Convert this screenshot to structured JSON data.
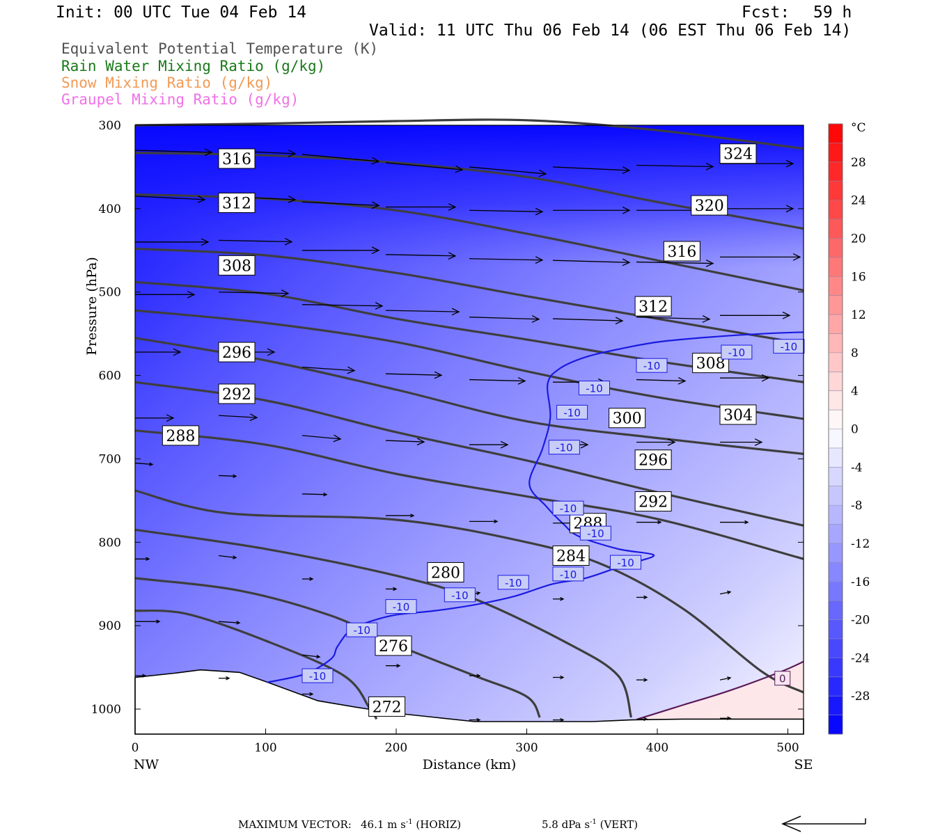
{
  "header": {
    "init": "Init: 00 UTC Tue 04 Feb 14",
    "fcst_label": "Fcst:",
    "fcst_value": "59 h",
    "valid": "Valid: 11 UTC Thu 06 Feb 14 (06 EST Thu 06 Feb 14)"
  },
  "legend": [
    {
      "label": "Equivalent Potential Temperature (K)",
      "color": "#505050"
    },
    {
      "label": "Rain Water Mixing Ratio (g/kg)",
      "color": "#1a7a1a"
    },
    {
      "label": "Snow Mixing Ratio (g/kg)",
      "color": "#f29a55"
    },
    {
      "label": "Graupel Mixing Ratio (g/kg)",
      "color": "#f070e8"
    }
  ],
  "chart_data": {
    "type": "cross-section",
    "xlabel": "Distance (km)",
    "ylabel": "Pressure (hPa)",
    "xlim": [
      0,
      512
    ],
    "ylim": [
      1030,
      300
    ],
    "x_ticks": [
      0,
      100,
      200,
      300,
      400,
      500
    ],
    "y_ticks": [
      300,
      400,
      500,
      600,
      700,
      800,
      900,
      1000
    ],
    "x_endpoint_labels": [
      "NW",
      "SE"
    ],
    "colorbar": {
      "unit": "°C",
      "labels": [
        28,
        24,
        20,
        16,
        12,
        8,
        4,
        0,
        -4,
        -8,
        -12,
        -16,
        -20,
        -24,
        -28
      ],
      "range": [
        -32,
        32
      ]
    },
    "theta_e_contours": [
      {
        "level": 324,
        "points": [
          [
            0,
            300
          ],
          [
            100,
            298
          ],
          [
            200,
            295
          ],
          [
            300,
            294
          ],
          [
            400,
            306
          ],
          [
            512,
            328
          ]
        ]
      },
      {
        "level": 320,
        "points": [
          [
            0,
            333
          ],
          [
            100,
            336
          ],
          [
            200,
            345
          ],
          [
            300,
            362
          ],
          [
            400,
            392
          ],
          [
            512,
            424
          ]
        ]
      },
      {
        "level": 316,
        "points": [
          [
            0,
            383
          ],
          [
            100,
            388
          ],
          [
            200,
            402
          ],
          [
            300,
            430
          ],
          [
            400,
            462
          ],
          [
            512,
            498
          ]
        ]
      },
      {
        "level": 312,
        "points": [
          [
            0,
            448
          ],
          [
            100,
            456
          ],
          [
            200,
            477
          ],
          [
            300,
            505
          ],
          [
            400,
            532
          ],
          [
            512,
            562
          ]
        ]
      },
      {
        "level": 308,
        "points": [
          [
            0,
            488
          ],
          [
            100,
            502
          ],
          [
            200,
            532
          ],
          [
            300,
            557
          ],
          [
            400,
            583
          ],
          [
            512,
            608
          ]
        ]
      },
      {
        "level": 304,
        "points": [
          [
            0,
            522
          ],
          [
            100,
            537
          ],
          [
            200,
            560
          ],
          [
            300,
            595
          ],
          [
            400,
            626
          ],
          [
            512,
            652
          ]
        ]
      },
      {
        "level": 300,
        "points": [
          [
            0,
            555
          ],
          [
            100,
            582
          ],
          [
            200,
            617
          ],
          [
            300,
            655
          ],
          [
            400,
            675
          ],
          [
            512,
            694
          ]
        ]
      },
      {
        "level": 296,
        "points": [
          [
            0,
            608
          ],
          [
            100,
            630
          ],
          [
            200,
            668
          ],
          [
            300,
            702
          ],
          [
            400,
            740
          ],
          [
            512,
            780
          ]
        ]
      },
      {
        "level": 288,
        "points": [
          [
            0,
            666
          ],
          [
            100,
            683
          ],
          [
            200,
            718
          ],
          [
            300,
            745
          ],
          [
            400,
            772
          ],
          [
            512,
            820
          ]
        ]
      },
      {
        "level": 284,
        "points": [
          [
            0,
            738
          ],
          [
            70,
            765
          ],
          [
            200,
            773
          ],
          [
            300,
            800
          ],
          [
            360,
            828
          ],
          [
            420,
            880
          ],
          [
            480,
            955
          ],
          [
            512,
            980
          ]
        ]
      },
      {
        "level": 280,
        "points": [
          [
            0,
            785
          ],
          [
            100,
            808
          ],
          [
            200,
            840
          ],
          [
            260,
            868
          ],
          [
            330,
            920
          ],
          [
            370,
            960
          ],
          [
            380,
            1010
          ]
        ]
      },
      {
        "level": 276,
        "points": [
          [
            0,
            843
          ],
          [
            80,
            858
          ],
          [
            150,
            888
          ],
          [
            200,
            923
          ],
          [
            260,
            960
          ],
          [
            300,
            985
          ],
          [
            310,
            1010
          ]
        ]
      },
      {
        "level": 272,
        "points": [
          [
            0,
            882
          ],
          [
            40,
            886
          ],
          [
            100,
            918
          ],
          [
            160,
            960
          ],
          [
            180,
            1000
          ],
          [
            185,
            1012
          ]
        ]
      }
    ],
    "contour_labels": [
      {
        "text": "316",
        "x": 64,
        "p": 340
      },
      {
        "text": "312",
        "x": 64,
        "p": 393
      },
      {
        "text": "308",
        "x": 64,
        "p": 468
      },
      {
        "text": "296",
        "x": 64,
        "p": 572
      },
      {
        "text": "292",
        "x": 64,
        "p": 622
      },
      {
        "text": "288",
        "x": 21,
        "p": 672
      },
      {
        "text": "324",
        "x": 448,
        "p": 334
      },
      {
        "text": "320",
        "x": 426,
        "p": 396
      },
      {
        "text": "316",
        "x": 405,
        "p": 451
      },
      {
        "text": "312",
        "x": 383,
        "p": 517
      },
      {
        "text": "308",
        "x": 427,
        "p": 585
      },
      {
        "text": "304",
        "x": 448,
        "p": 647
      },
      {
        "text": "300",
        "x": 363,
        "p": 651
      },
      {
        "text": "296",
        "x": 383,
        "p": 701
      },
      {
        "text": "292",
        "x": 383,
        "p": 751
      },
      {
        "text": "288",
        "x": 333,
        "p": 777
      },
      {
        "text": "284",
        "x": 320,
        "p": 816
      },
      {
        "text": "280",
        "x": 224,
        "p": 836
      },
      {
        "text": "276",
        "x": 184,
        "p": 924
      },
      {
        "text": "272",
        "x": 179,
        "p": 997
      }
    ],
    "temperature_isotherms": [
      {
        "level": -10,
        "points": [
          [
            101,
            968
          ],
          [
            130,
            958
          ],
          [
            150,
            940
          ],
          [
            155,
            925
          ],
          [
            165,
            905
          ],
          [
            180,
            895
          ],
          [
            200,
            887
          ],
          [
            230,
            882
          ],
          [
            260,
            875
          ],
          [
            290,
            865
          ],
          [
            320,
            850
          ],
          [
            345,
            843
          ],
          [
            370,
            830
          ],
          [
            385,
            823
          ],
          [
            397,
            815
          ],
          [
            370,
            808
          ],
          [
            340,
            793
          ],
          [
            328,
            778
          ],
          [
            315,
            757
          ],
          [
            302,
            730
          ],
          [
            312,
            688
          ],
          [
            318,
            650
          ],
          [
            316,
            610
          ],
          [
            325,
            592
          ],
          [
            345,
            578
          ],
          [
            372,
            568
          ],
          [
            400,
            560
          ],
          [
            440,
            554
          ],
          [
            480,
            550
          ],
          [
            512,
            548
          ]
        ]
      },
      {
        "level": 0,
        "points": [
          [
            385,
            1012
          ],
          [
            420,
            995
          ],
          [
            455,
            978
          ],
          [
            495,
            955
          ],
          [
            512,
            943
          ]
        ]
      }
    ],
    "isotherm_labels": [
      {
        "text": "-10",
        "x": 128,
        "p": 960
      },
      {
        "text": "-10",
        "x": 162,
        "p": 905
      },
      {
        "text": "-10",
        "x": 192,
        "p": 877
      },
      {
        "text": "-10",
        "x": 237,
        "p": 863
      },
      {
        "text": "-10",
        "x": 278,
        "p": 848
      },
      {
        "text": "-10",
        "x": 320,
        "p": 838
      },
      {
        "text": "-10",
        "x": 364,
        "p": 824
      },
      {
        "text": "-10",
        "x": 341,
        "p": 789
      },
      {
        "text": "-10",
        "x": 320,
        "p": 759
      },
      {
        "text": "-10",
        "x": 317,
        "p": 686
      },
      {
        "text": "-10",
        "x": 323,
        "p": 644
      },
      {
        "text": "-10",
        "x": 340,
        "p": 615
      },
      {
        "text": "-10",
        "x": 384,
        "p": 588
      },
      {
        "text": "-10",
        "x": 449,
        "p": 572
      },
      {
        "text": "-10",
        "x": 489,
        "p": 565
      },
      {
        "text": "0",
        "x": 490,
        "p": 963
      }
    ],
    "terrain": [
      [
        0,
        962
      ],
      [
        30,
        957
      ],
      [
        50,
        953
      ],
      [
        80,
        956
      ],
      [
        100,
        967
      ],
      [
        140,
        990
      ],
      [
        170,
        998
      ],
      [
        200,
        1005
      ],
      [
        230,
        1010
      ],
      [
        260,
        1015
      ],
      [
        300,
        1015
      ],
      [
        350,
        1015
      ],
      [
        380,
        1013
      ],
      [
        420,
        1012
      ],
      [
        470,
        1012
      ],
      [
        512,
        1012
      ]
    ],
    "wind_vectors": [
      {
        "x": 0,
        "p": 330,
        "u": 110,
        "v": 3
      },
      {
        "x": 64,
        "p": 330,
        "u": 110,
        "v": 5
      },
      {
        "x": 128,
        "p": 335,
        "u": 110,
        "v": 10
      },
      {
        "x": 192,
        "p": 345,
        "u": 110,
        "v": 10
      },
      {
        "x": 256,
        "p": 350,
        "u": 110,
        "v": 10
      },
      {
        "x": 320,
        "p": 350,
        "u": 110,
        "v": 5
      },
      {
        "x": 384,
        "p": 348,
        "u": 110,
        "v": 2
      },
      {
        "x": 448,
        "p": 346,
        "u": 105,
        "v": 0
      },
      {
        "x": 0,
        "p": 385,
        "u": 100,
        "v": 5
      },
      {
        "x": 64,
        "p": 385,
        "u": 110,
        "v": 5
      },
      {
        "x": 128,
        "p": 392,
        "u": 110,
        "v": 5
      },
      {
        "x": 192,
        "p": 398,
        "u": 100,
        "v": 0
      },
      {
        "x": 256,
        "p": 402,
        "u": 105,
        "v": 2
      },
      {
        "x": 320,
        "p": 402,
        "u": 110,
        "v": 0
      },
      {
        "x": 384,
        "p": 402,
        "u": 105,
        "v": 0
      },
      {
        "x": 448,
        "p": 400,
        "u": 105,
        "v": 0
      },
      {
        "x": 0,
        "p": 440,
        "u": 105,
        "v": 0
      },
      {
        "x": 64,
        "p": 438,
        "u": 105,
        "v": 2
      },
      {
        "x": 128,
        "p": 450,
        "u": 110,
        "v": 0
      },
      {
        "x": 192,
        "p": 455,
        "u": 100,
        "v": 2
      },
      {
        "x": 256,
        "p": 460,
        "u": 105,
        "v": 2
      },
      {
        "x": 320,
        "p": 462,
        "u": 110,
        "v": 3
      },
      {
        "x": 384,
        "p": 464,
        "u": 110,
        "v": 2
      },
      {
        "x": 448,
        "p": 458,
        "u": 115,
        "v": 0
      },
      {
        "x": 0,
        "p": 503,
        "u": 85,
        "v": 0
      },
      {
        "x": 64,
        "p": 500,
        "u": 100,
        "v": 2
      },
      {
        "x": 128,
        "p": 515,
        "u": 115,
        "v": 2
      },
      {
        "x": 192,
        "p": 522,
        "u": 105,
        "v": 2
      },
      {
        "x": 256,
        "p": 530,
        "u": 100,
        "v": 3
      },
      {
        "x": 320,
        "p": 532,
        "u": 100,
        "v": 3
      },
      {
        "x": 384,
        "p": 530,
        "u": 105,
        "v": 3
      },
      {
        "x": 448,
        "p": 528,
        "u": 100,
        "v": 0
      },
      {
        "x": 0,
        "p": 572,
        "u": 65,
        "v": 0
      },
      {
        "x": 64,
        "p": 572,
        "u": 80,
        "v": 0
      },
      {
        "x": 128,
        "p": 590,
        "u": 75,
        "v": 5
      },
      {
        "x": 192,
        "p": 598,
        "u": 80,
        "v": 2
      },
      {
        "x": 256,
        "p": 605,
        "u": 80,
        "v": 2
      },
      {
        "x": 320,
        "p": 608,
        "u": 75,
        "v": 0
      },
      {
        "x": 384,
        "p": 605,
        "u": 70,
        "v": 2
      },
      {
        "x": 448,
        "p": 603,
        "u": 70,
        "v": 0
      },
      {
        "x": 0,
        "p": 651,
        "u": 55,
        "v": 0
      },
      {
        "x": 64,
        "p": 648,
        "u": 55,
        "v": 3
      },
      {
        "x": 128,
        "p": 672,
        "u": 55,
        "v": 5
      },
      {
        "x": 192,
        "p": 678,
        "u": 55,
        "v": 2
      },
      {
        "x": 256,
        "p": 683,
        "u": 55,
        "v": 0
      },
      {
        "x": 320,
        "p": 683,
        "u": 50,
        "v": 0
      },
      {
        "x": 384,
        "p": 680,
        "u": 55,
        "v": 0
      },
      {
        "x": 448,
        "p": 680,
        "u": 60,
        "v": 0
      },
      {
        "x": 0,
        "p": 705,
        "u": 25,
        "v": 2
      },
      {
        "x": 64,
        "p": 720,
        "u": 25,
        "v": 1
      },
      {
        "x": 128,
        "p": 742,
        "u": 35,
        "v": 1
      },
      {
        "x": 192,
        "p": 768,
        "u": 40,
        "v": 0
      },
      {
        "x": 256,
        "p": 775,
        "u": 40,
        "v": 0
      },
      {
        "x": 320,
        "p": 777,
        "u": 35,
        "v": 0
      },
      {
        "x": 384,
        "p": 776,
        "u": 35,
        "v": 0
      },
      {
        "x": 448,
        "p": 776,
        "u": 40,
        "v": 0
      },
      {
        "x": 0,
        "p": 820,
        "u": 20,
        "v": 0
      },
      {
        "x": 64,
        "p": 816,
        "u": 25,
        "v": 3
      },
      {
        "x": 128,
        "p": 844,
        "u": 15,
        "v": 0
      },
      {
        "x": 192,
        "p": 856,
        "u": 15,
        "v": 0
      },
      {
        "x": 256,
        "p": 863,
        "u": 15,
        "v": -3
      },
      {
        "x": 320,
        "p": 868,
        "u": 15,
        "v": 0
      },
      {
        "x": 384,
        "p": 866,
        "u": 15,
        "v": 0
      },
      {
        "x": 448,
        "p": 862,
        "u": 15,
        "v": -3
      },
      {
        "x": 0,
        "p": 895,
        "u": 35,
        "v": 0
      },
      {
        "x": 64,
        "p": 895,
        "u": 30,
        "v": 2
      },
      {
        "x": 128,
        "p": 935,
        "u": 25,
        "v": 3
      },
      {
        "x": 192,
        "p": 948,
        "u": 20,
        "v": 0
      },
      {
        "x": 256,
        "p": 960,
        "u": 15,
        "v": 0
      },
      {
        "x": 320,
        "p": 962,
        "u": 15,
        "v": 0
      },
      {
        "x": 384,
        "p": 965,
        "u": 15,
        "v": 0
      },
      {
        "x": 448,
        "p": 965,
        "u": 15,
        "v": -3
      },
      {
        "x": 0,
        "p": 960,
        "u": 15,
        "v": 0
      },
      {
        "x": 64,
        "p": 963,
        "u": 15,
        "v": 0
      },
      {
        "x": 128,
        "p": 982,
        "u": 15,
        "v": 0
      },
      {
        "x": 192,
        "p": 1003,
        "u": 15,
        "v": 0
      },
      {
        "x": 256,
        "p": 1013,
        "u": 15,
        "v": 0
      },
      {
        "x": 320,
        "p": 1013,
        "u": 15,
        "v": 0
      },
      {
        "x": 384,
        "p": 1012,
        "u": 15,
        "v": 0
      },
      {
        "x": 448,
        "p": 1011,
        "u": 15,
        "v": 0
      }
    ]
  },
  "footer": {
    "max_vector_label": "MAXIMUM VECTOR:",
    "horiz_value": "46.1 m s",
    "horiz_exp": "-1",
    "horiz_tag": "(HORIZ)",
    "vert_value": "5.8 dPa s",
    "vert_exp": "-1",
    "vert_tag": "(VERT)"
  }
}
